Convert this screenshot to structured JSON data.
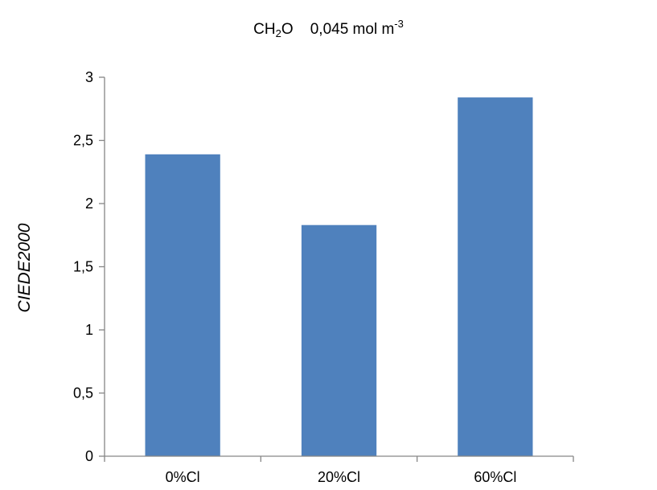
{
  "chart_data": {
    "type": "bar",
    "title": {
      "formula_main": "CH",
      "formula_sub": "2",
      "formula_end": "O",
      "concentration": "0,045 mol m",
      "exponent": "-3"
    },
    "xlabel": "",
    "ylabel": "CIEDE2000",
    "categories": [
      "0%Cl",
      "20%Cl",
      "60%Cl"
    ],
    "values": [
      2.39,
      1.83,
      2.84
    ],
    "ylim": [
      0,
      3
    ],
    "yticks": [
      "0",
      "0,5",
      "1",
      "1,5",
      "2",
      "2,5",
      "3"
    ],
    "ytick_values": [
      0,
      0.5,
      1,
      1.5,
      2,
      2.5,
      3
    ],
    "bar_color": "#4F81BD",
    "axis_color": "#868686",
    "grid": false,
    "legend": "none"
  }
}
